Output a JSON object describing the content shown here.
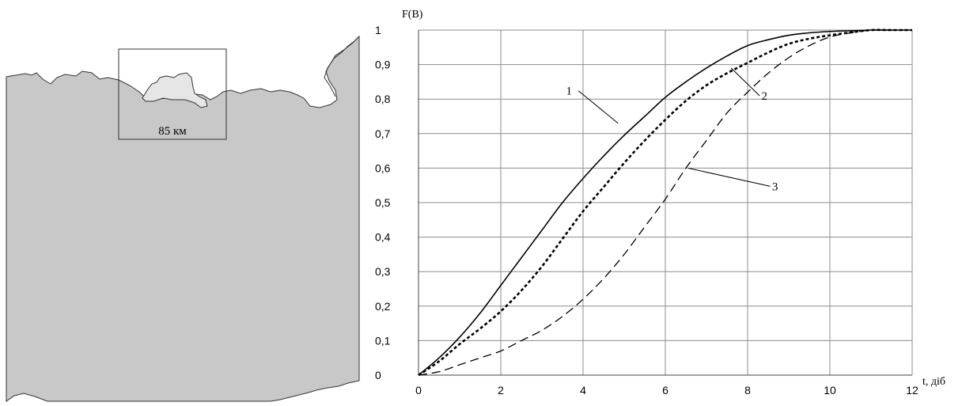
{
  "map": {
    "scale_label": "85 км",
    "colors": {
      "land": "#c8c8c8",
      "outline": "#333333",
      "region_fill": "#e6e6e6"
    }
  },
  "chart_data": {
    "type": "line",
    "ylabel": "F(B)",
    "xlabel": "t, діб",
    "xlim": [
      0,
      12
    ],
    "ylim": [
      0,
      1
    ],
    "x_ticks": [
      0,
      2,
      4,
      6,
      8,
      10,
      12
    ],
    "x_tick_labels": [
      "0",
      "2",
      "4",
      "6",
      "8",
      "10",
      "12"
    ],
    "y_ticks": [
      0,
      0.1,
      0.2,
      0.3,
      0.4,
      0.5,
      0.6,
      0.7,
      0.8,
      0.9,
      1
    ],
    "y_tick_labels": [
      "0",
      "0,1",
      "0,2",
      "0,3",
      "0,4",
      "0,5",
      "0,6",
      "0,7",
      "0,8",
      "0,9",
      "1"
    ],
    "grid": true,
    "series": [
      {
        "name": "1",
        "style": "solid",
        "x": [
          0,
          0.5,
          1,
          1.5,
          2,
          2.5,
          3,
          3.5,
          4,
          4.5,
          5,
          5.5,
          6,
          6.5,
          7,
          7.5,
          8,
          8.5,
          9,
          9.5,
          10,
          10.5,
          11,
          11.5,
          12
        ],
        "y": [
          0,
          0.05,
          0.11,
          0.18,
          0.26,
          0.34,
          0.42,
          0.5,
          0.57,
          0.635,
          0.695,
          0.75,
          0.805,
          0.85,
          0.89,
          0.925,
          0.955,
          0.972,
          0.985,
          0.992,
          0.996,
          0.998,
          1,
          1,
          1
        ]
      },
      {
        "name": "2",
        "style": "dotted",
        "x": [
          0,
          0.5,
          1,
          1.5,
          2,
          2.5,
          3,
          3.5,
          4,
          4.5,
          5,
          5.5,
          6,
          6.5,
          7,
          7.5,
          8,
          8.5,
          9,
          9.5,
          10,
          10.5,
          11,
          11.5,
          12
        ],
        "y": [
          0,
          0.04,
          0.09,
          0.135,
          0.185,
          0.245,
          0.315,
          0.395,
          0.475,
          0.545,
          0.615,
          0.68,
          0.74,
          0.795,
          0.84,
          0.875,
          0.905,
          0.935,
          0.96,
          0.975,
          0.985,
          0.993,
          1,
          1,
          1
        ]
      },
      {
        "name": "3",
        "style": "dashed",
        "x": [
          0,
          0.5,
          1,
          1.5,
          2,
          2.5,
          3,
          3.5,
          4,
          4.5,
          5,
          5.5,
          6,
          6.5,
          7,
          7.5,
          8,
          8.5,
          9,
          9.5,
          10,
          10.5,
          11,
          11.5,
          12
        ],
        "y": [
          0,
          0.01,
          0.03,
          0.05,
          0.07,
          0.1,
          0.13,
          0.17,
          0.22,
          0.28,
          0.35,
          0.43,
          0.51,
          0.6,
          0.68,
          0.76,
          0.82,
          0.875,
          0.92,
          0.955,
          0.98,
          0.992,
          1,
          1,
          1
        ]
      }
    ],
    "curve_labels": [
      {
        "text": "1",
        "x": 4.85,
        "y": 0.73
      },
      {
        "text": "2",
        "x": 7.6,
        "y": 0.89
      },
      {
        "text": "3",
        "x": 6.55,
        "y": 0.6
      }
    ]
  }
}
